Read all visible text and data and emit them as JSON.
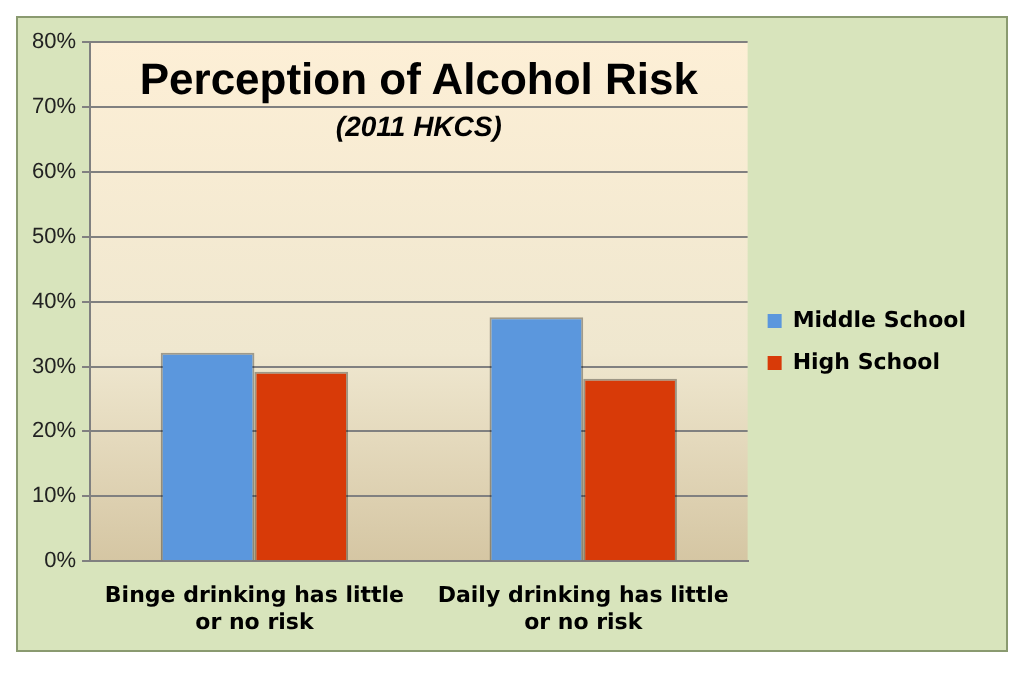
{
  "chart_data": {
    "type": "bar",
    "title": "Perception of Alcohol Risk",
    "subtitle": "(2011 HKCS)",
    "categories": [
      "Binge drinking has little or no risk",
      "Daily drinking has little or no risk"
    ],
    "series": [
      {
        "name": "Middle School",
        "color": "#5b97dd",
        "values": [
          32.1,
          37.6
        ]
      },
      {
        "name": "High School",
        "color": "#d83a08",
        "values": [
          29.2,
          28.1
        ]
      }
    ],
    "ylim": [
      0,
      80
    ],
    "yticks": [
      {
        "value": 0,
        "label": "0%"
      },
      {
        "value": 10,
        "label": "10%"
      },
      {
        "value": 20,
        "label": "20%"
      },
      {
        "value": 30,
        "label": "30%"
      },
      {
        "value": 40,
        "label": "40%"
      },
      {
        "value": 50,
        "label": "50%"
      },
      {
        "value": 60,
        "label": "60%"
      },
      {
        "value": 70,
        "label": "70%"
      },
      {
        "value": 80,
        "label": "80%"
      }
    ],
    "grid": "y",
    "legend": "right"
  }
}
